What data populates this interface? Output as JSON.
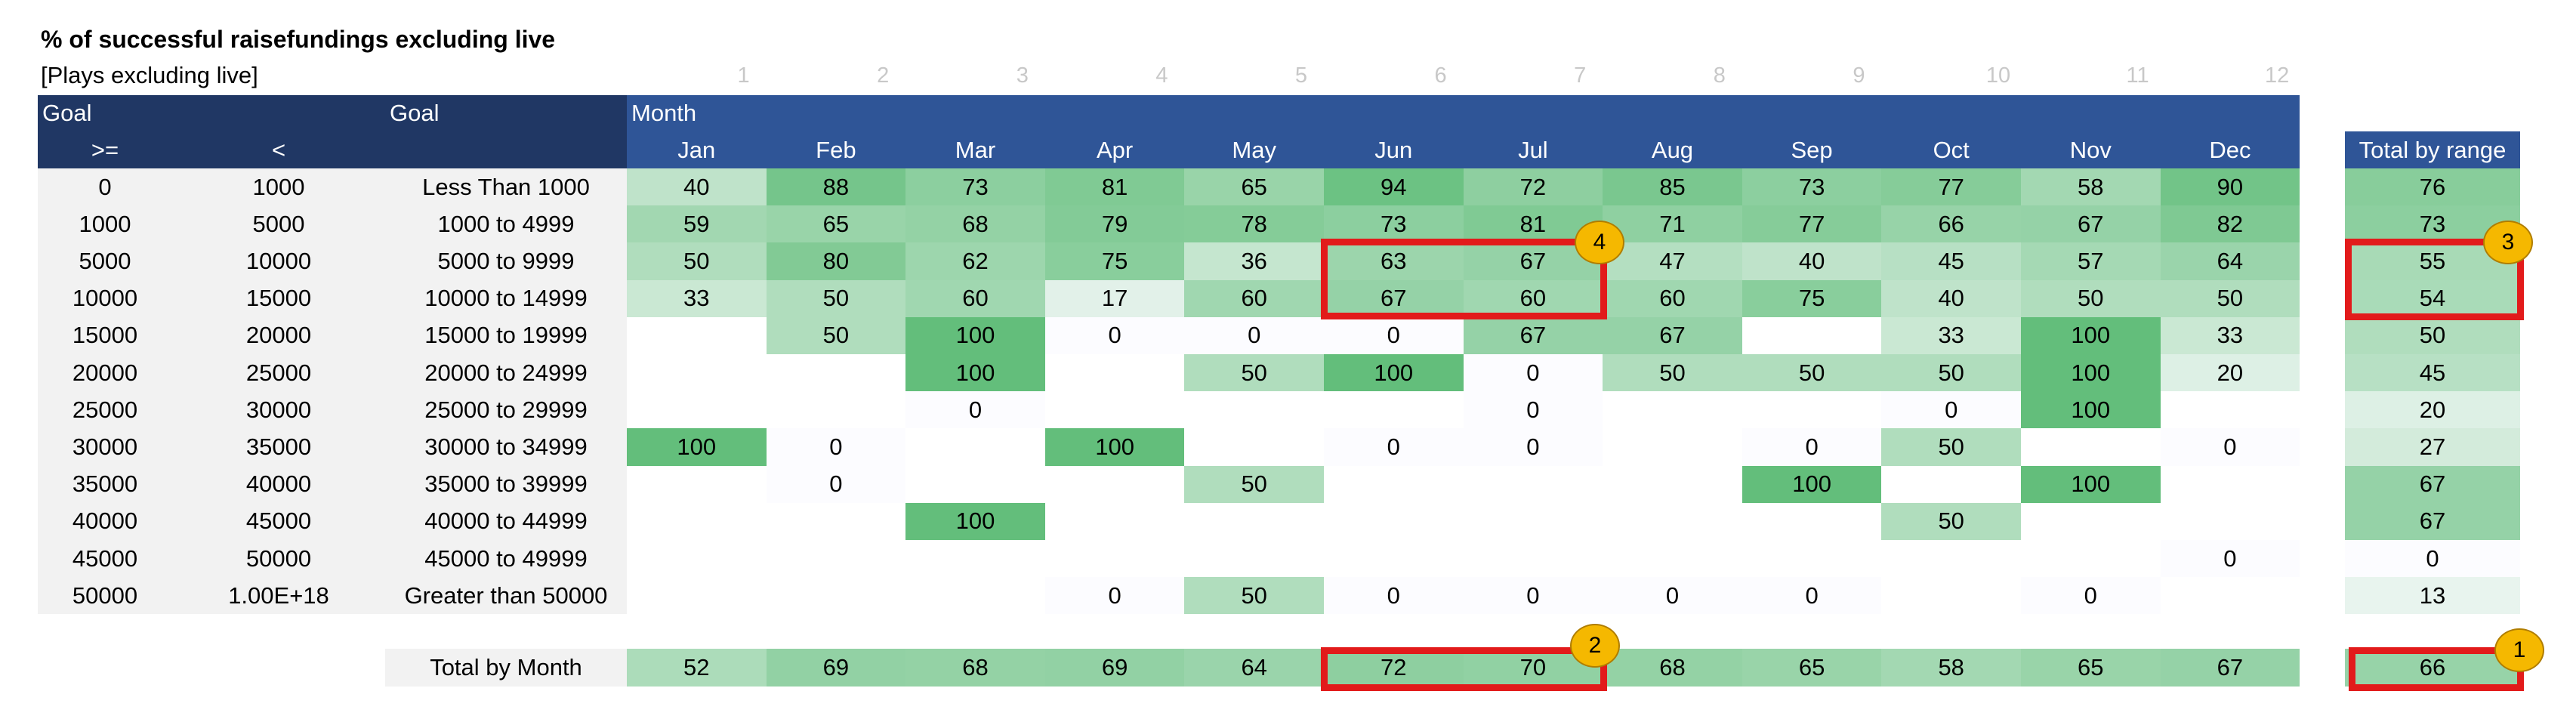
{
  "title": "% of successful raisefundings excluding live",
  "subtitle": "[Plays excluding live]",
  "column_numbers": [
    "1",
    "2",
    "3",
    "4",
    "5",
    "6",
    "7",
    "8",
    "9",
    "10",
    "11",
    "12"
  ],
  "header": {
    "goal_label": "Goal",
    "gte_label": ">=",
    "lt_label": "<",
    "goal_range_label": "Goal",
    "month_label": "Month",
    "months": [
      "Jan",
      "Feb",
      "Mar",
      "Apr",
      "May",
      "Jun",
      "Jul",
      "Aug",
      "Sep",
      "Oct",
      "Nov",
      "Dec"
    ],
    "total_by_range_label": "Total by range"
  },
  "rows": [
    {
      "gte": "0",
      "lt": "1000",
      "label": "Less Than 1000",
      "values": [
        "40",
        "88",
        "73",
        "81",
        "65",
        "94",
        "72",
        "85",
        "73",
        "77",
        "58",
        "90"
      ],
      "total": "76"
    },
    {
      "gte": "1000",
      "lt": "5000",
      "label": "1000 to 4999",
      "values": [
        "59",
        "65",
        "68",
        "79",
        "78",
        "73",
        "81",
        "71",
        "77",
        "66",
        "67",
        "82"
      ],
      "total": "73"
    },
    {
      "gte": "5000",
      "lt": "10000",
      "label": "5000 to 9999",
      "values": [
        "50",
        "80",
        "62",
        "75",
        "36",
        "63",
        "67",
        "47",
        "40",
        "45",
        "57",
        "64"
      ],
      "total": "55"
    },
    {
      "gte": "10000",
      "lt": "15000",
      "label": "10000 to 14999",
      "values": [
        "33",
        "50",
        "60",
        "17",
        "60",
        "67",
        "60",
        "60",
        "75",
        "40",
        "50",
        "50"
      ],
      "total": "54"
    },
    {
      "gte": "15000",
      "lt": "20000",
      "label": "15000 to 19999",
      "values": [
        "",
        "50",
        "100",
        "0",
        "0",
        "0",
        "67",
        "67",
        "",
        "33",
        "100",
        "33"
      ],
      "total": "50"
    },
    {
      "gte": "20000",
      "lt": "25000",
      "label": "20000 to 24999",
      "values": [
        "",
        "",
        "100",
        "",
        "50",
        "100",
        "0",
        "50",
        "50",
        "50",
        "100",
        "20"
      ],
      "total": "45"
    },
    {
      "gte": "25000",
      "lt": "30000",
      "label": "25000 to 29999",
      "values": [
        "",
        "",
        "0",
        "",
        "",
        "",
        "0",
        "",
        "",
        "0",
        "100",
        ""
      ],
      "total": "20"
    },
    {
      "gte": "30000",
      "lt": "35000",
      "label": "30000 to 34999",
      "values": [
        "100",
        "0",
        "",
        "100",
        "",
        "0",
        "0",
        "",
        "0",
        "50",
        "",
        "0"
      ],
      "total": "27"
    },
    {
      "gte": "35000",
      "lt": "40000",
      "label": "35000 to 39999",
      "values": [
        "",
        "0",
        "",
        "",
        "50",
        "",
        "",
        "",
        "100",
        "",
        "100",
        ""
      ],
      "total": "67"
    },
    {
      "gte": "40000",
      "lt": "45000",
      "label": "40000 to 44999",
      "values": [
        "",
        "",
        "100",
        "",
        "",
        "",
        "",
        "",
        "",
        "50",
        "",
        ""
      ],
      "total": "67"
    },
    {
      "gte": "45000",
      "lt": "50000",
      "label": "45000 to 49999",
      "values": [
        "",
        "",
        "",
        "",
        "",
        "",
        "",
        "",
        "",
        "",
        "",
        "0"
      ],
      "total": "0"
    },
    {
      "gte": "50000",
      "lt": "1.00E+18",
      "label": "Greater than 50000",
      "values": [
        "",
        "",
        "",
        "0",
        "50",
        "0",
        "0",
        "0",
        "0",
        "",
        "0",
        ""
      ],
      "total": "13"
    }
  ],
  "total_by_month": {
    "label": "Total by Month",
    "values": [
      "52",
      "69",
      "68",
      "69",
      "64",
      "72",
      "70",
      "68",
      "65",
      "58",
      "65",
      "67"
    ],
    "grand_total": "66"
  },
  "badges": [
    "1",
    "2",
    "3",
    "4"
  ],
  "colors": {
    "header_dark": "#203764",
    "header_blue": "#2f5597",
    "highlight_red": "#e21b1b",
    "badge_yellow": "#f5b800",
    "scale_high": "#63be7b",
    "scale_low": "#fcfcff"
  }
}
